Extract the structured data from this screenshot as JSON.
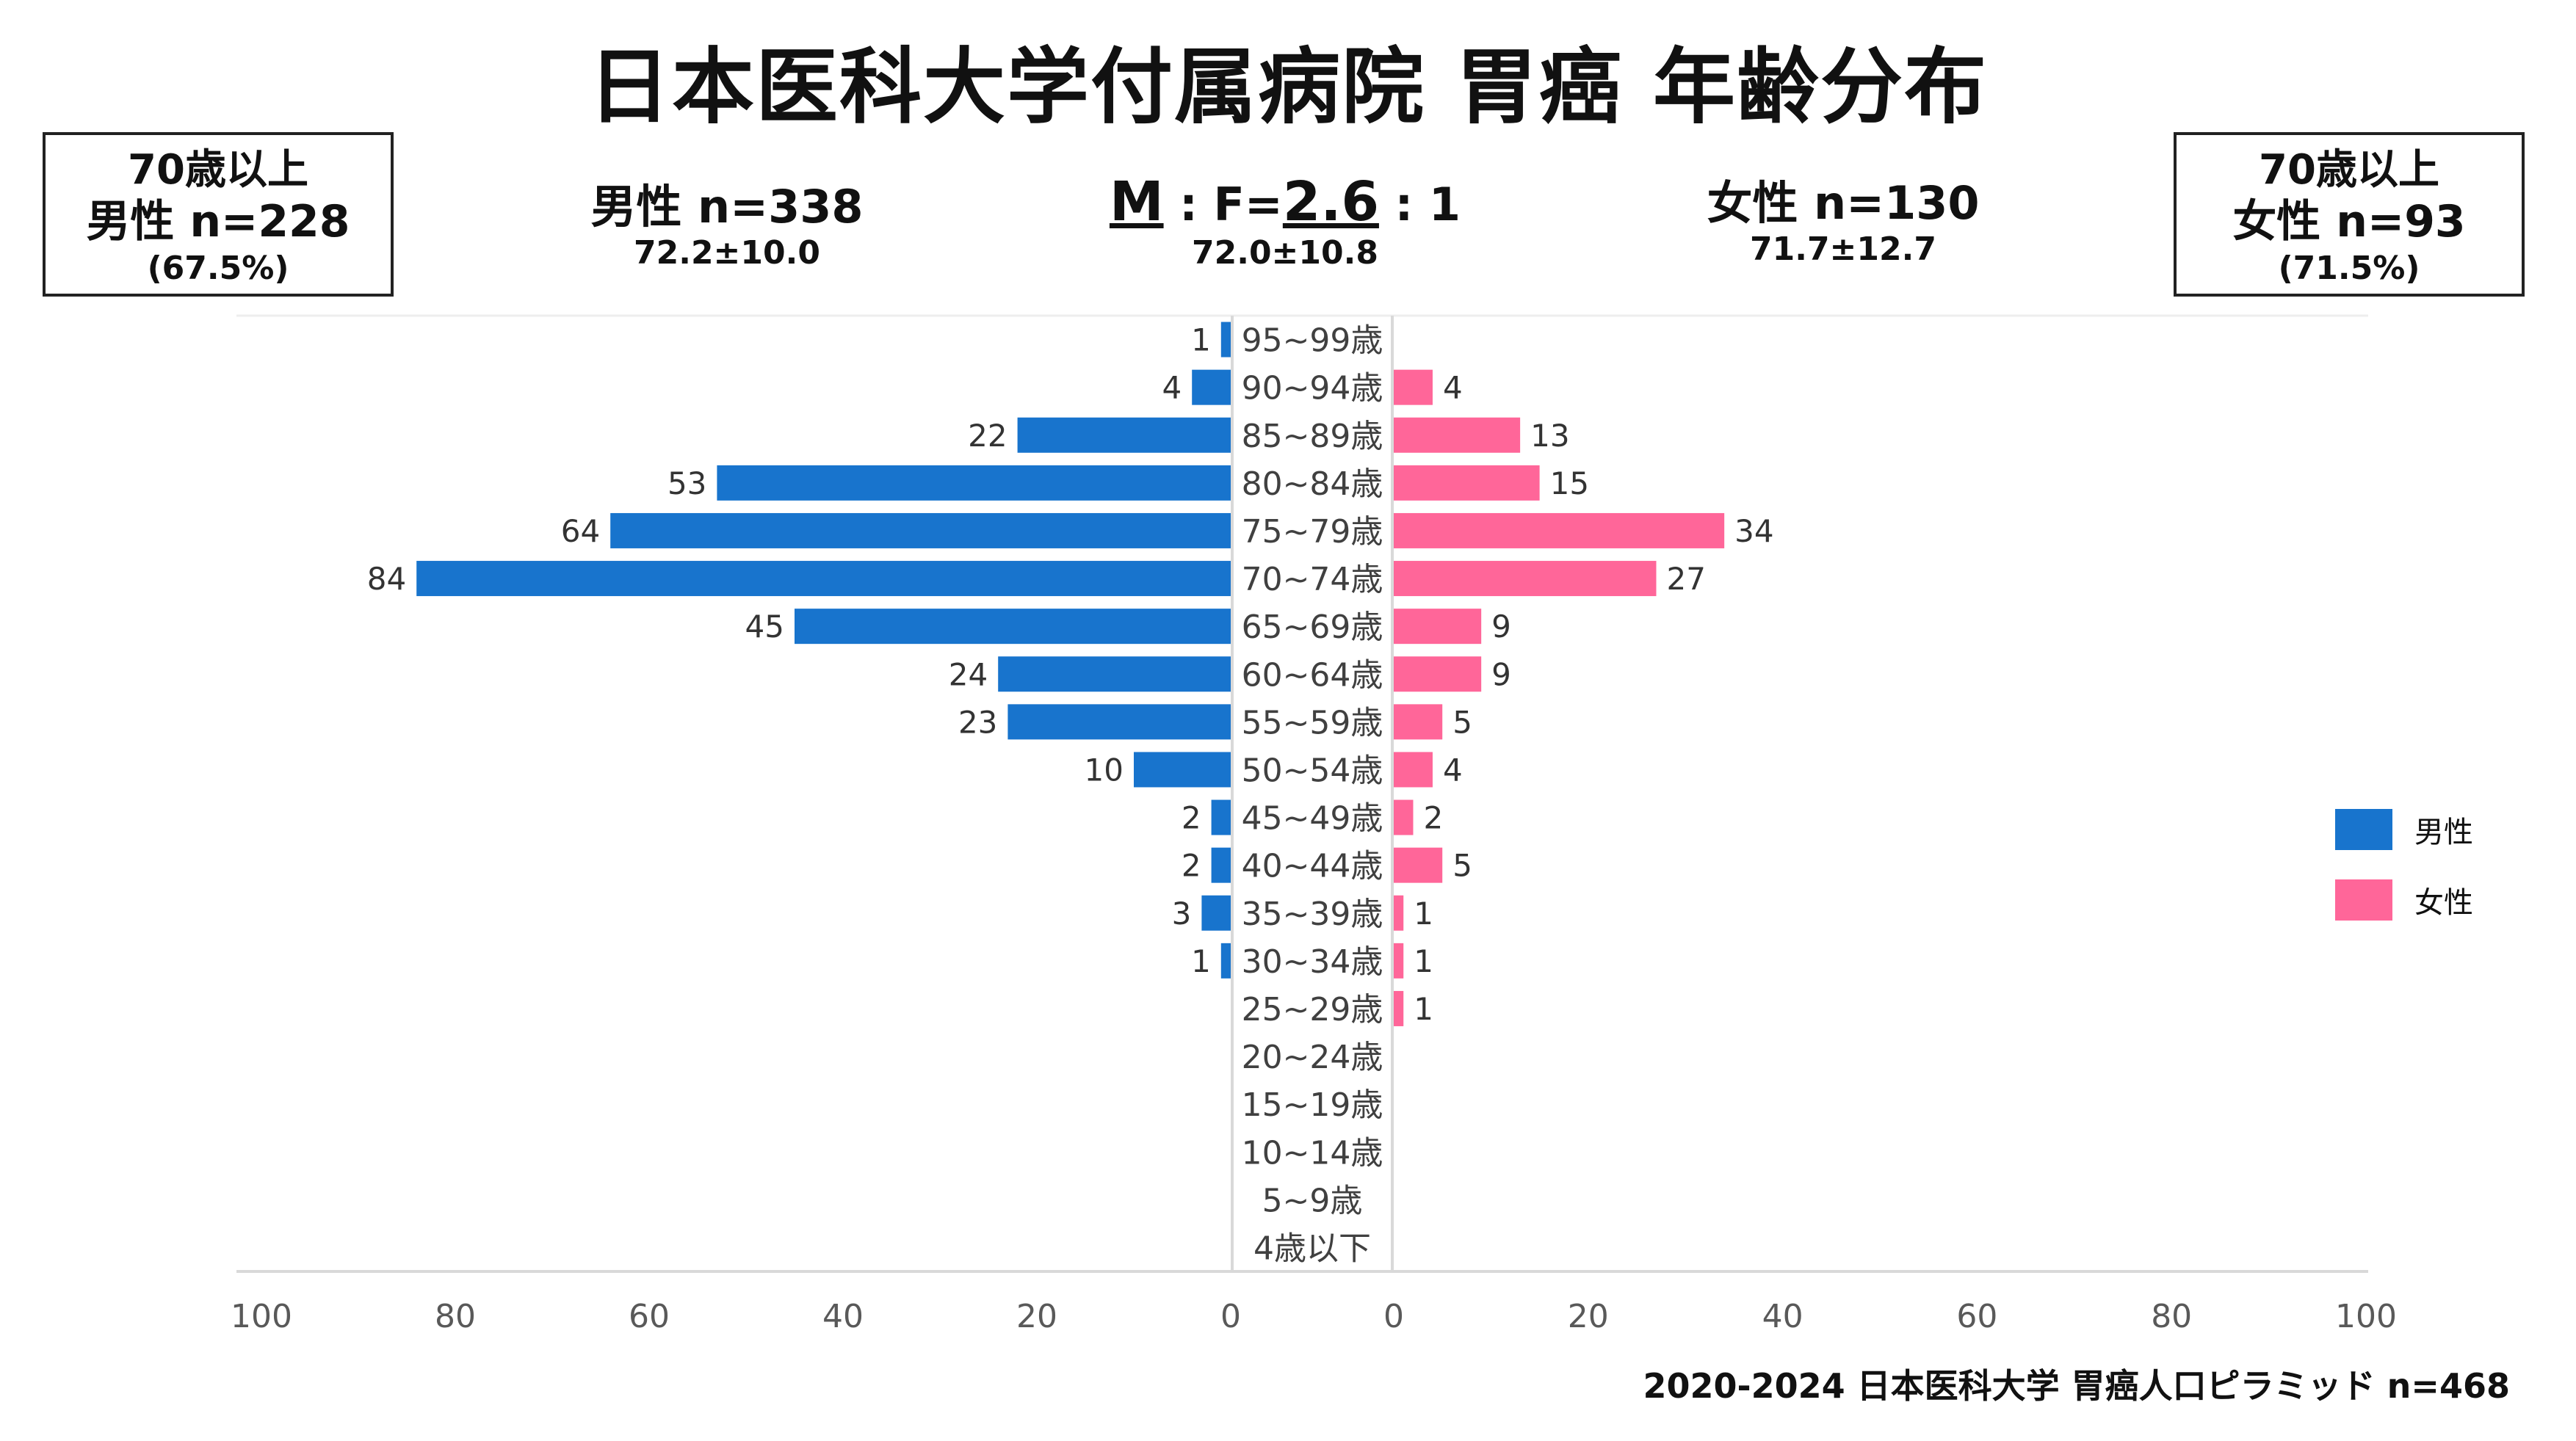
{
  "title": "日本医科大学付属病院 胃癌 年齢分布",
  "left_box": {
    "line1": "70歳以上",
    "line2": "男性 n=228",
    "line3": "(67.5%)"
  },
  "right_box": {
    "line1": "70歳以上",
    "line2": "女性 n=93",
    "line3": "(71.5%)"
  },
  "male_stat": {
    "n": "男性 n=338",
    "mean_sd": "72.2±10.0"
  },
  "female_stat": {
    "n": "女性 n=130",
    "mean_sd": "71.7±12.7"
  },
  "ratio": {
    "m": "M",
    "sep1": " : F=",
    "value": "2.6",
    "sep2": " : 1",
    "mean_sd": "72.0±10.8"
  },
  "footer": "2020-2024 日本医科大学 胃癌人口ピラミッド n=468",
  "colors": {
    "male": "#1874CD",
    "female": "#FF6699",
    "axis": "#d9d9d9",
    "text": "#404040"
  },
  "chart_data": {
    "type": "bar",
    "orientation": "horizontal-population-pyramid",
    "categories": [
      "95~99歳",
      "90~94歳",
      "85~89歳",
      "80~84歳",
      "75~79歳",
      "70~74歳",
      "65~69歳",
      "60~64歳",
      "55~59歳",
      "50~54歳",
      "45~49歳",
      "40~44歳",
      "35~39歳",
      "30~34歳",
      "25~29歳",
      "20~24歳",
      "15~19歳",
      "10~14歳",
      "5~9歳",
      "4歳以下"
    ],
    "series": [
      {
        "name": "男性",
        "values": [
          1,
          4,
          22,
          53,
          64,
          84,
          45,
          24,
          23,
          10,
          2,
          2,
          3,
          1,
          0,
          0,
          0,
          0,
          0,
          0
        ]
      },
      {
        "name": "女性",
        "values": [
          0,
          4,
          13,
          15,
          34,
          27,
          9,
          9,
          5,
          4,
          2,
          5,
          1,
          1,
          1,
          0,
          0,
          0,
          0,
          0
        ]
      }
    ],
    "xlim": [
      0,
      100
    ],
    "ticks": [
      "100",
      "80",
      "60",
      "40",
      "20",
      "0"
    ],
    "ticks_right": [
      "0",
      "20",
      "40",
      "60",
      "80",
      "100"
    ],
    "legend_position": "right"
  }
}
